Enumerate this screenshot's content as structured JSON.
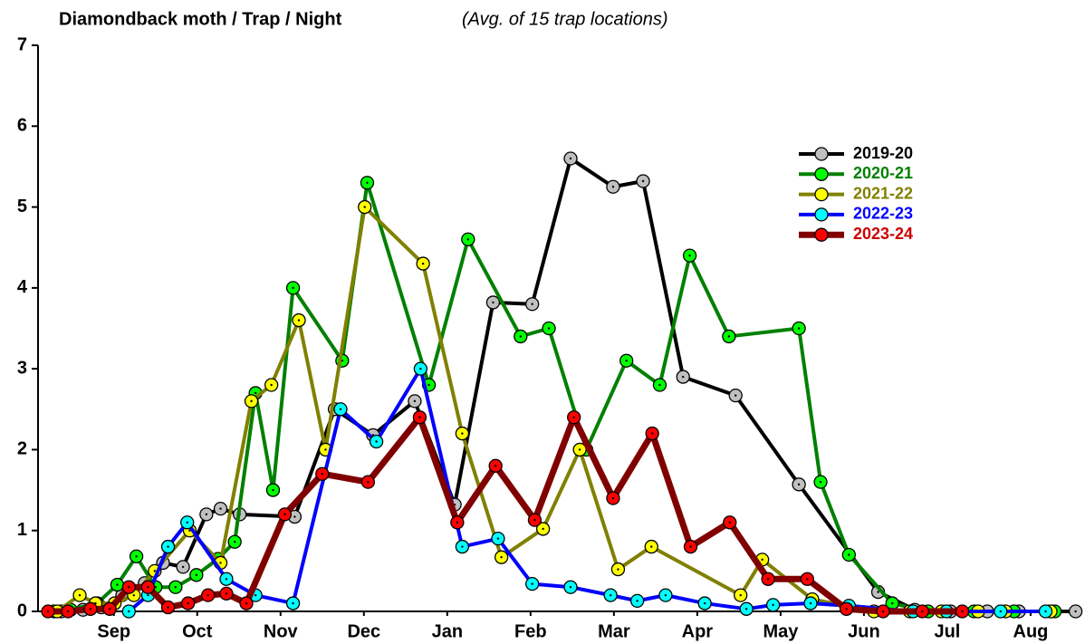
{
  "chart_data": {
    "type": "line",
    "title": "Diamondback moth / Trap / Night",
    "subtitle": "(Avg. of 15 trap locations)",
    "xlim": [
      -0.41,
      12.12
    ],
    "xticks": [
      {
        "value": 0.5,
        "label": "Sep"
      },
      {
        "value": 1.5,
        "label": "Oct"
      },
      {
        "value": 2.5,
        "label": "Nov"
      },
      {
        "value": 3.5,
        "label": "Dec"
      },
      {
        "value": 4.5,
        "label": "Jan"
      },
      {
        "value": 5.5,
        "label": "Feb"
      },
      {
        "value": 6.5,
        "label": "Mar"
      },
      {
        "value": 7.5,
        "label": "Apr"
      },
      {
        "value": 8.5,
        "label": "May"
      },
      {
        "value": 9.5,
        "label": "Jun"
      },
      {
        "value": 10.5,
        "label": "Jul"
      },
      {
        "value": 11.5,
        "label": "Aug"
      }
    ],
    "ylim": [
      0,
      7
    ],
    "yticks": [
      0,
      1,
      2,
      3,
      4,
      5,
      6,
      7
    ],
    "legend": "upper right",
    "series": [
      {
        "name": "2019-20",
        "color": "#000000",
        "marker_color": "#c0c0c0",
        "x": [
          -0.13,
          0.13,
          0.35,
          0.6,
          0.87,
          1.09,
          1.33,
          1.61,
          1.78,
          2.01,
          2.67,
          3.15,
          3.61,
          4.11,
          4.59,
          5.05,
          5.52,
          5.98,
          6.49,
          6.85,
          7.33,
          7.96,
          8.72,
          9.67,
          10.11,
          10.54,
          10.98,
          11.36,
          11.74,
          12.04
        ],
        "values": [
          0,
          0.02,
          0.05,
          0.2,
          0.35,
          0.6,
          0.55,
          1.2,
          1.27,
          1.2,
          1.17,
          2.5,
          2.18,
          2.6,
          1.32,
          3.82,
          3.8,
          5.6,
          5.25,
          5.32,
          2.9,
          2.67,
          1.57,
          0.24,
          0.02,
          0,
          0,
          0,
          0,
          0
        ]
      },
      {
        "name": "2020-21",
        "color": "#008000",
        "marker_color": "#00ff00",
        "x": [
          -0.22,
          -0.02,
          0.3,
          0.54,
          0.77,
          1.0,
          1.24,
          1.49,
          1.75,
          1.95,
          2.2,
          2.41,
          2.65,
          3.24,
          3.54,
          4.28,
          4.75,
          5.38,
          5.72,
          6.17,
          6.65,
          7.05,
          7.41,
          7.88,
          8.72,
          8.98,
          9.32,
          9.84,
          10.27,
          10.82,
          11.3,
          11.79
        ],
        "values": [
          0,
          0.02,
          0.1,
          0.33,
          0.68,
          0.3,
          0.3,
          0.45,
          0.65,
          0.86,
          2.7,
          1.5,
          4.0,
          3.1,
          5.3,
          2.8,
          4.6,
          3.4,
          3.5,
          2.0,
          3.1,
          2.8,
          4.4,
          3.4,
          3.5,
          1.6,
          0.7,
          0.1,
          0,
          0,
          0,
          0
        ]
      },
      {
        "name": "2021-22",
        "color": "#808000",
        "marker_color": "#ffff00",
        "x": [
          -0.18,
          0.09,
          0.28,
          0.51,
          0.74,
          0.99,
          1.41,
          1.78,
          2.15,
          2.39,
          2.72,
          3.04,
          3.51,
          4.21,
          4.68,
          5.15,
          5.65,
          6.09,
          6.55,
          6.95,
          8.02,
          8.28,
          8.88,
          9.62,
          10.05,
          10.43,
          10.87,
          11.2,
          11.74
        ],
        "values": [
          0,
          0.2,
          0.1,
          0.1,
          0.2,
          0.5,
          1.0,
          0.6,
          2.6,
          2.8,
          3.6,
          2.0,
          5.0,
          4.3,
          2.2,
          0.67,
          1.02,
          2.0,
          0.52,
          0.8,
          0.2,
          0.64,
          0.15,
          0,
          0,
          0,
          0,
          0,
          0
        ]
      },
      {
        "name": "2022-23",
        "color": "#0000ff",
        "marker_color": "#00ffff",
        "x": [
          0.68,
          0.91,
          1.15,
          1.38,
          1.85,
          2.2,
          2.65,
          3.22,
          3.65,
          4.18,
          4.68,
          5.11,
          5.52,
          5.98,
          6.46,
          6.78,
          7.12,
          7.59,
          8.09,
          8.41,
          8.86,
          9.32,
          10.09,
          10.49,
          11.14,
          11.68
        ],
        "values": [
          0,
          0.2,
          0.8,
          1.1,
          0.4,
          0.2,
          0.1,
          2.5,
          2.1,
          3.0,
          0.8,
          0.9,
          0.34,
          0.3,
          0.2,
          0.13,
          0.2,
          0.1,
          0.03,
          0.08,
          0.1,
          0.07,
          0,
          0,
          0,
          0
        ]
      },
      {
        "name": "2023-24",
        "color": "#800000",
        "marker_color": "#ff0000",
        "x": [
          -0.29,
          -0.05,
          0.22,
          0.45,
          0.68,
          0.91,
          1.15,
          1.39,
          1.63,
          1.85,
          2.09,
          2.55,
          3.0,
          3.55,
          4.17,
          4.62,
          5.08,
          5.55,
          6.02,
          6.49,
          6.96,
          7.42,
          7.89,
          8.35,
          8.82,
          9.29,
          9.73,
          10.2,
          10.68
        ],
        "values": [
          0,
          0,
          0.03,
          0.03,
          0.3,
          0.3,
          0.05,
          0.1,
          0.2,
          0.22,
          0.1,
          1.2,
          1.7,
          1.6,
          2.4,
          1.1,
          1.8,
          1.13,
          2.4,
          1.4,
          2.2,
          0.8,
          1.1,
          0.4,
          0.4,
          0.03,
          0,
          0,
          0
        ]
      }
    ]
  }
}
